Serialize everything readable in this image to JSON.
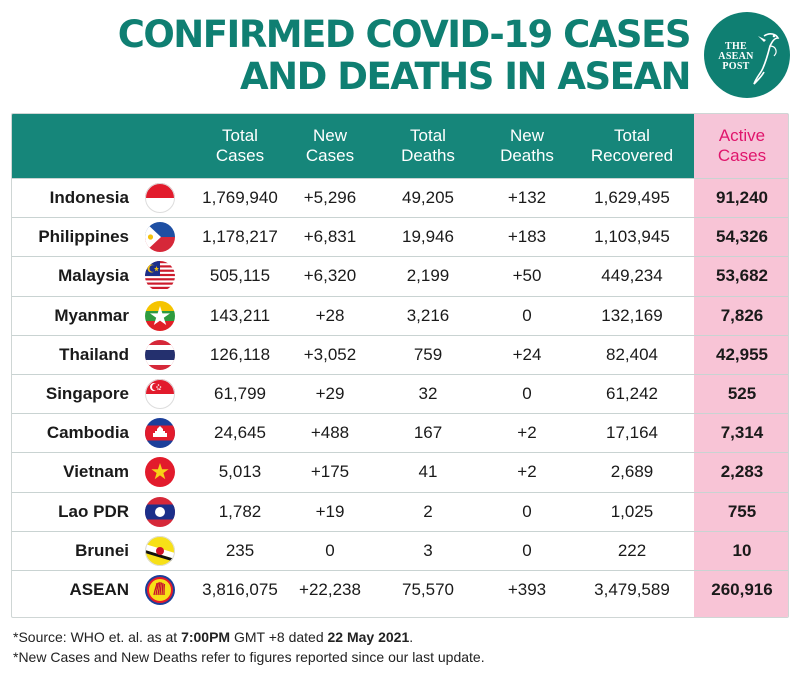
{
  "title_line1": "CONFIRMED COVID-19 CASES",
  "title_line2": "AND DEATHS IN ASEAN",
  "logo": {
    "line1": "THE",
    "line2": "ASEAN",
    "line3": "POST"
  },
  "headers": {
    "total_cases": [
      "Total",
      "Cases"
    ],
    "new_cases": [
      "New",
      "Cases"
    ],
    "total_deaths": [
      "Total",
      "Deaths"
    ],
    "new_deaths": [
      "New",
      "Deaths"
    ],
    "total_recovered": [
      "Total",
      "Recovered"
    ],
    "active_cases": [
      "Active",
      "Cases"
    ]
  },
  "chart_data": {
    "type": "table",
    "columns": [
      "Total Cases",
      "New Cases",
      "Total Deaths",
      "New Deaths",
      "Total Recovered",
      "Active Cases"
    ],
    "rows": [
      {
        "country": "Indonesia",
        "flag": "indonesia-flag",
        "total_cases": "1,769,940",
        "new_cases": "+5,296",
        "total_deaths": "49,205",
        "new_deaths": "+132",
        "total_recovered": "1,629,495",
        "active_cases": "91,240"
      },
      {
        "country": "Philippines",
        "flag": "philippines-flag",
        "total_cases": "1,178,217",
        "new_cases": "+6,831",
        "total_deaths": "19,946",
        "new_deaths": "+183",
        "total_recovered": "1,103,945",
        "active_cases": "54,326"
      },
      {
        "country": "Malaysia",
        "flag": "malaysia-flag",
        "total_cases": "505,115",
        "new_cases": "+6,320",
        "total_deaths": "2,199",
        "new_deaths": "+50",
        "total_recovered": "449,234",
        "active_cases": "53,682"
      },
      {
        "country": "Myanmar",
        "flag": "myanmar-flag",
        "total_cases": "143,211",
        "new_cases": "+28",
        "total_deaths": "3,216",
        "new_deaths": "0",
        "total_recovered": "132,169",
        "active_cases": "7,826"
      },
      {
        "country": "Thailand",
        "flag": "thailand-flag",
        "total_cases": "126,118",
        "new_cases": "+3,052",
        "total_deaths": "759",
        "new_deaths": "+24",
        "total_recovered": "82,404",
        "active_cases": "42,955"
      },
      {
        "country": "Singapore",
        "flag": "singapore-flag",
        "total_cases": "61,799",
        "new_cases": "+29",
        "total_deaths": "32",
        "new_deaths": "0",
        "total_recovered": "61,242",
        "active_cases": "525"
      },
      {
        "country": "Cambodia",
        "flag": "cambodia-flag",
        "total_cases": "24,645",
        "new_cases": "+488",
        "total_deaths": "167",
        "new_deaths": "+2",
        "total_recovered": "17,164",
        "active_cases": "7,314"
      },
      {
        "country": "Vietnam",
        "flag": "vietnam-flag",
        "total_cases": "5,013",
        "new_cases": "+175",
        "total_deaths": "41",
        "new_deaths": "+2",
        "total_recovered": "2,689",
        "active_cases": "2,283"
      },
      {
        "country": "Lao PDR",
        "flag": "laos-flag",
        "total_cases": "1,782",
        "new_cases": "+19",
        "total_deaths": "2",
        "new_deaths": "0",
        "total_recovered": "1,025",
        "active_cases": "755"
      },
      {
        "country": "Brunei",
        "flag": "brunei-flag",
        "total_cases": "235",
        "new_cases": "0",
        "total_deaths": "3",
        "new_deaths": "0",
        "total_recovered": "222",
        "active_cases": "10"
      },
      {
        "country": "ASEAN",
        "flag": "asean-emblem",
        "total_cases": "3,816,075",
        "new_cases": "+22,238",
        "total_deaths": "75,570",
        "new_deaths": "+393",
        "total_recovered": "3,479,589",
        "active_cases": "260,916"
      }
    ]
  },
  "footnote1": {
    "a": "*Source: WHO et. al. as at ",
    "b": "7:00PM",
    "c": " GMT +8 dated ",
    "d": "22 May 2021",
    "e": "."
  },
  "footnote2": "*New Cases and New Deaths refer to figures reported since our last update.",
  "colors": {
    "brand_teal": "#16867a",
    "title_teal": "#0f7f72",
    "active_pink": "#f8c4d6",
    "active_header_text": "#e0156c"
  }
}
